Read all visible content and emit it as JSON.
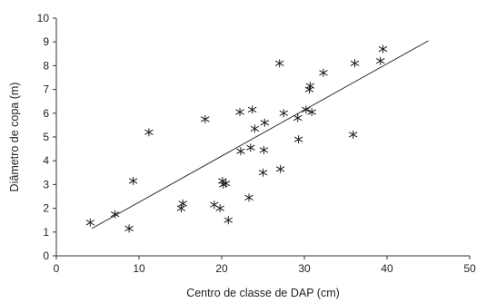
{
  "chart_data": {
    "type": "scatter",
    "title": "",
    "xlabel": "Centro de classe de DAP (cm)",
    "ylabel": "Diâmetro de copa (m)",
    "xlim": [
      0,
      50
    ],
    "ylim": [
      0,
      10
    ],
    "xticks": [
      0,
      10,
      20,
      30,
      40,
      50
    ],
    "yticks": [
      0,
      1,
      2,
      3,
      4,
      5,
      6,
      7,
      8,
      9,
      10
    ],
    "grid": false,
    "marker": "asterisk",
    "series": [
      {
        "points": [
          [
            4.1,
            1.4
          ],
          [
            7.1,
            1.75
          ],
          [
            8.8,
            1.15
          ],
          [
            9.3,
            3.15
          ],
          [
            11.2,
            5.2
          ],
          [
            15.1,
            2.0
          ],
          [
            15.3,
            2.2
          ],
          [
            18.0,
            5.75
          ],
          [
            19.1,
            2.15
          ],
          [
            19.8,
            2.0
          ],
          [
            20.1,
            3.15
          ],
          [
            20.2,
            3.0
          ],
          [
            20.5,
            3.05
          ],
          [
            20.8,
            1.5
          ],
          [
            22.2,
            6.05
          ],
          [
            22.3,
            4.4
          ],
          [
            23.3,
            2.45
          ],
          [
            23.5,
            4.55
          ],
          [
            23.7,
            6.15
          ],
          [
            24.0,
            5.35
          ],
          [
            25.0,
            3.5
          ],
          [
            25.1,
            4.45
          ],
          [
            25.2,
            5.6
          ],
          [
            27.0,
            8.1
          ],
          [
            27.1,
            3.65
          ],
          [
            27.5,
            6.0
          ],
          [
            29.2,
            5.8
          ],
          [
            29.3,
            4.9
          ],
          [
            30.2,
            6.15
          ],
          [
            30.6,
            7.0
          ],
          [
            30.7,
            7.15
          ],
          [
            30.9,
            6.05
          ],
          [
            32.3,
            7.7
          ],
          [
            35.9,
            5.1
          ],
          [
            36.1,
            8.1
          ],
          [
            39.2,
            8.2
          ],
          [
            39.5,
            8.7
          ]
        ]
      }
    ],
    "trendline": {
      "x": [
        4.3,
        45.0
      ],
      "y": [
        1.15,
        9.05
      ]
    }
  }
}
